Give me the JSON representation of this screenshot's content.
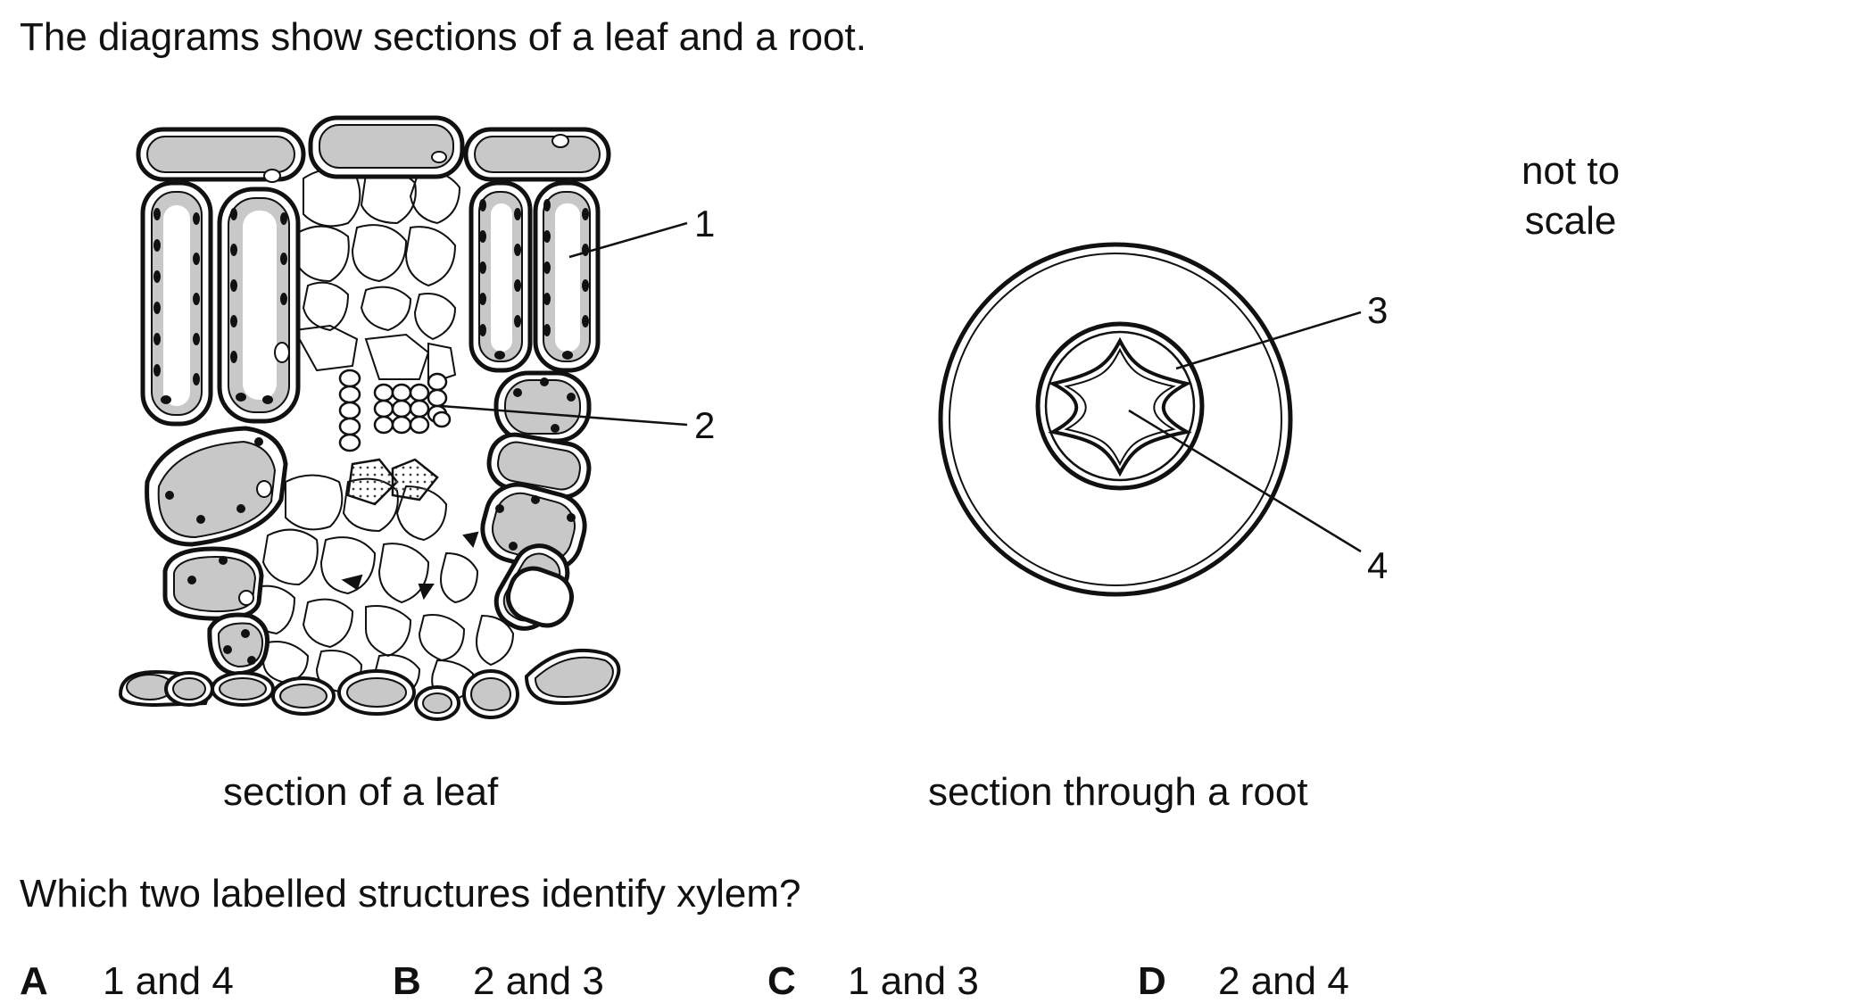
{
  "question": {
    "intro": "The diagrams show sections of a leaf and a root.",
    "not_to_scale_line1": "not to",
    "not_to_scale_line2": "scale",
    "leaf_caption": "section of a leaf",
    "root_caption": "section through a root",
    "prompt": "Which two labelled structures identify xylem?"
  },
  "labels": {
    "one": "1",
    "two": "2",
    "three": "3",
    "four": "4"
  },
  "options": [
    {
      "letter": "A",
      "text": "1 and 4"
    },
    {
      "letter": "B",
      "text": "2 and 3"
    },
    {
      "letter": "C",
      "text": "1 and 3"
    },
    {
      "letter": "D",
      "text": "2 and 4"
    }
  ]
}
